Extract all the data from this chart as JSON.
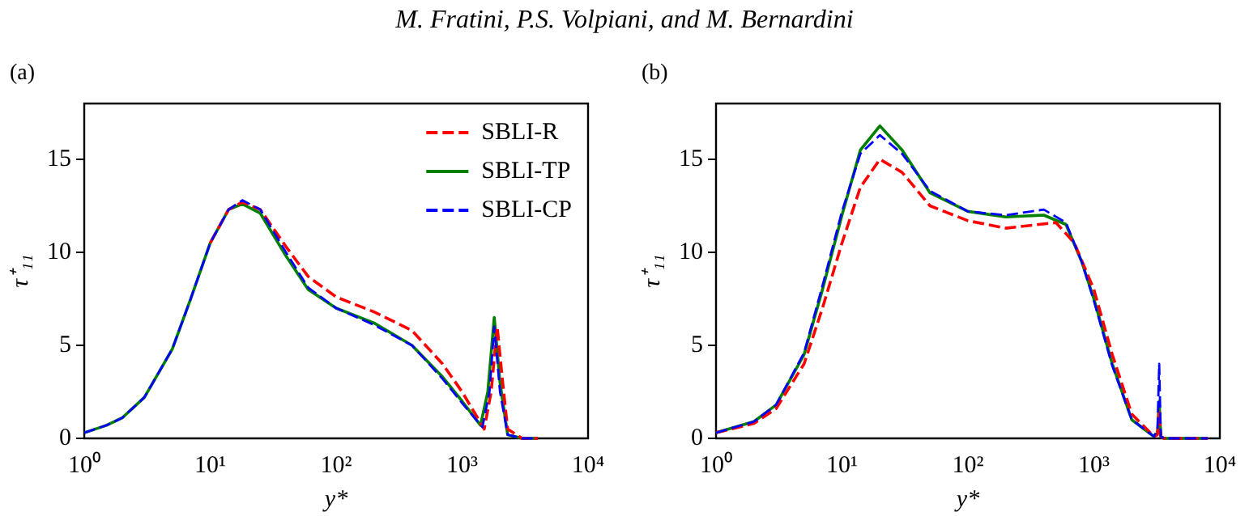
{
  "chart_data": [
    {
      "type": "line",
      "title": "(a)",
      "annotations": [
        "M. Fratini, P.S. Volpiani, and M. Bernardini"
      ],
      "xlabel": "y*",
      "ylabel": "τ⁺₁₁",
      "log": "x",
      "grid": false,
      "legend": "top right",
      "marker": "none",
      "xlim": [
        1,
        10000
      ],
      "xticks": [
        {
          "value": 1,
          "label": "10⁰"
        },
        {
          "value": 10,
          "label": "10¹"
        },
        {
          "value": 100,
          "label": "10²"
        },
        {
          "value": 1000,
          "label": "10³"
        },
        {
          "value": 10000,
          "label": "10⁴"
        }
      ],
      "ylim": [
        0,
        18
      ],
      "yticks": [
        0,
        5,
        10,
        15
      ],
      "series": [
        {
          "name": "SBLI-R",
          "color": "#ff0000",
          "line_style": "dashed",
          "x": [
            10,
            14,
            18,
            25,
            40,
            60,
            100,
            200,
            400,
            700,
            1000,
            1500,
            1700,
            1900,
            2100,
            2300,
            3000,
            4000
          ],
          "values": [
            10.5,
            12.3,
            12.7,
            12.3,
            10.3,
            8.7,
            7.6,
            6.8,
            5.8,
            4.0,
            2.5,
            0.5,
            2.5,
            6.0,
            3.0,
            0.5,
            0,
            0
          ]
        },
        {
          "name": "SBLI-TP",
          "color": "#008000",
          "line_style": "solid",
          "x": [
            1,
            1.5,
            2,
            3,
            5,
            7,
            10,
            14,
            18,
            25,
            40,
            60,
            100,
            200,
            400,
            700,
            1000,
            1400,
            1600,
            1800,
            2000,
            2300,
            3000,
            4000
          ],
          "values": [
            0.3,
            0.7,
            1.1,
            2.2,
            4.8,
            7.5,
            10.5,
            12.3,
            12.6,
            12.1,
            9.8,
            8.0,
            7.0,
            6.2,
            5.0,
            3.3,
            2.0,
            0.7,
            2.5,
            6.5,
            3.0,
            0.2,
            0,
            0
          ]
        },
        {
          "name": "SBLI-CP",
          "color": "#0000ff",
          "line_style": "dashed",
          "x": [
            1,
            1.5,
            2,
            3,
            5,
            7,
            10,
            14,
            18,
            25,
            40,
            60,
            100,
            200,
            400,
            700,
            1000,
            1450,
            1650,
            1800,
            2000,
            2300,
            3000,
            4000
          ],
          "values": [
            0.3,
            0.7,
            1.1,
            2.2,
            4.8,
            7.5,
            10.5,
            12.3,
            12.8,
            12.3,
            10.0,
            8.1,
            7.0,
            6.1,
            5.0,
            3.2,
            1.9,
            0.6,
            2.5,
            6.0,
            2.5,
            0.2,
            0,
            0
          ]
        }
      ]
    },
    {
      "type": "line",
      "title": "(b)",
      "xlabel": "y*",
      "ylabel": "τ⁺₁₁",
      "log": "x",
      "grid": false,
      "legend": false,
      "marker": "none",
      "xlim": [
        1,
        10000
      ],
      "xticks": [
        {
          "value": 1,
          "label": "10⁰"
        },
        {
          "value": 10,
          "label": "10¹"
        },
        {
          "value": 100,
          "label": "10²"
        },
        {
          "value": 1000,
          "label": "10³"
        },
        {
          "value": 10000,
          "label": "10⁴"
        }
      ],
      "ylim": [
        0,
        18
      ],
      "yticks": [
        0,
        5,
        10,
        15
      ],
      "series": [
        {
          "color": "#ff0000",
          "line_style": "dashed",
          "x": [
            1,
            2,
            3,
            5,
            7,
            10,
            14,
            20,
            30,
            50,
            100,
            200,
            500,
            700,
            1000,
            1400,
            2000,
            3000,
            3200,
            3300,
            3400,
            3600,
            8000
          ],
          "values": [
            0.3,
            0.8,
            1.6,
            4.0,
            7.0,
            10.5,
            13.5,
            15.0,
            14.3,
            12.5,
            11.7,
            11.3,
            11.6,
            10.5,
            8.0,
            4.5,
            1.3,
            0.1,
            0.2,
            1.5,
            0.1,
            0,
            0
          ]
        },
        {
          "color": "#008000",
          "line_style": "solid",
          "x": [
            1,
            2,
            3,
            5,
            7,
            10,
            14,
            20,
            30,
            50,
            100,
            200,
            400,
            600,
            800,
            1000,
            1400,
            2000,
            3000,
            3200,
            3300,
            3400,
            3600,
            8000
          ],
          "values": [
            0.3,
            0.9,
            1.8,
            4.5,
            8.0,
            12.0,
            15.5,
            16.8,
            15.5,
            13.2,
            12.2,
            11.9,
            12.0,
            11.5,
            9.5,
            7.5,
            4.0,
            1.0,
            0.1,
            0.3,
            2.0,
            0.1,
            0,
            0
          ]
        },
        {
          "color": "#0000ff",
          "line_style": "dashed",
          "x": [
            1,
            2,
            3,
            5,
            7,
            10,
            14,
            20,
            30,
            50,
            100,
            200,
            400,
            600,
            800,
            1000,
            1400,
            2000,
            3000,
            3200,
            3300,
            3400,
            3600,
            8000
          ],
          "values": [
            0.3,
            0.9,
            1.8,
            4.6,
            8.2,
            12.2,
            15.3,
            16.3,
            15.3,
            13.3,
            12.2,
            12.0,
            12.3,
            11.6,
            9.5,
            7.4,
            3.9,
            1.0,
            0.1,
            0.5,
            4.0,
            0.1,
            0,
            0
          ]
        }
      ]
    }
  ]
}
